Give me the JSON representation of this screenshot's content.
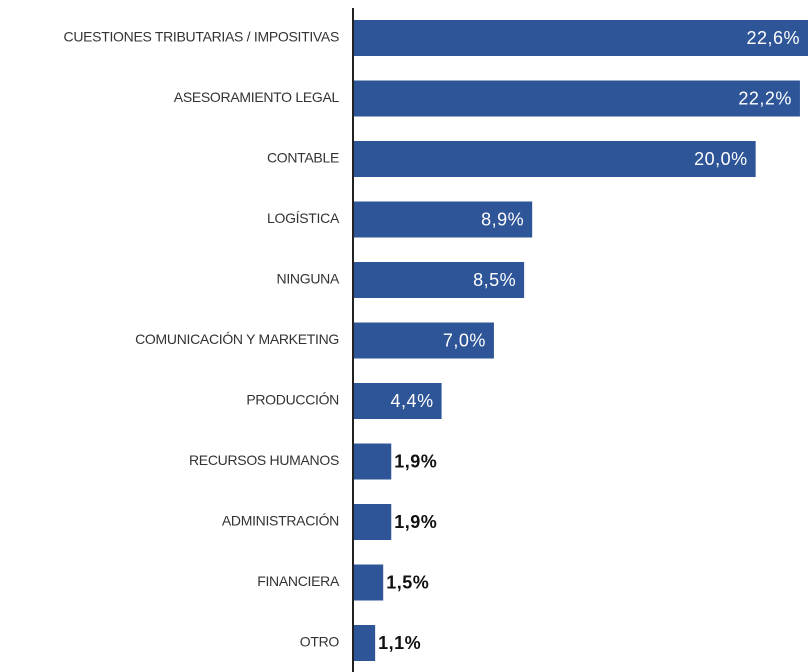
{
  "chart_data": {
    "type": "hbar",
    "categories": [
      "CUESTIONES TRIBUTARIAS / IMPOSITIVAS",
      "ASESORAMIENTO LEGAL",
      "CONTABLE",
      "LOGÍSTICA",
      "NINGUNA",
      "COMUNICACIÓN Y MARKETING",
      "PRODUCCIÓN",
      "RECURSOS HUMANOS",
      "ADMINISTRACIÓN",
      "FINANCIERA",
      "OTRO"
    ],
    "values": [
      22.6,
      22.2,
      20.0,
      8.9,
      8.5,
      7.0,
      4.4,
      1.9,
      1.9,
      1.5,
      1.1
    ],
    "value_labels": [
      "22,6%",
      "22,2%",
      "20,0%",
      "8,9%",
      "8,5%",
      "7,0%",
      "4,4%",
      "1,9%",
      "1,9%",
      "1,5%",
      "1,1%"
    ],
    "color": "#2e5597"
  }
}
